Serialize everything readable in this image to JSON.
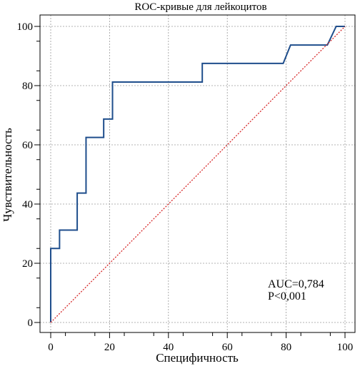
{
  "chart_data": {
    "type": "line",
    "title": "ROC-кривые для лейкоцитов",
    "xlabel": "Специфичность",
    "ylabel": "Чувствительность",
    "xlim": [
      0,
      100
    ],
    "ylim": [
      0,
      100
    ],
    "xticks": [
      "0",
      "20",
      "40",
      "60",
      "80",
      "100"
    ],
    "yticks": [
      "0",
      "20",
      "40",
      "60",
      "80",
      "100"
    ],
    "grid": true,
    "series": [
      {
        "style": "step",
        "color": "#1f4e8c",
        "x": [
          0,
          0,
          3,
          3,
          9,
          9,
          12,
          12,
          18,
          18,
          21,
          21,
          51.5,
          51.5,
          79,
          81.5,
          94,
          97,
          100
        ],
        "y": [
          0,
          25,
          25,
          31.2,
          31.2,
          43.7,
          43.7,
          62.5,
          62.5,
          68.7,
          68.7,
          81.2,
          81.2,
          87.5,
          87.5,
          93.7,
          93.7,
          100,
          100
        ]
      },
      {
        "style": "dotted",
        "color": "#d62728",
        "x": [
          0,
          100
        ],
        "y": [
          0,
          100
        ]
      }
    ],
    "annotations": [
      "AUC=0,784",
      "P<0,001"
    ]
  }
}
